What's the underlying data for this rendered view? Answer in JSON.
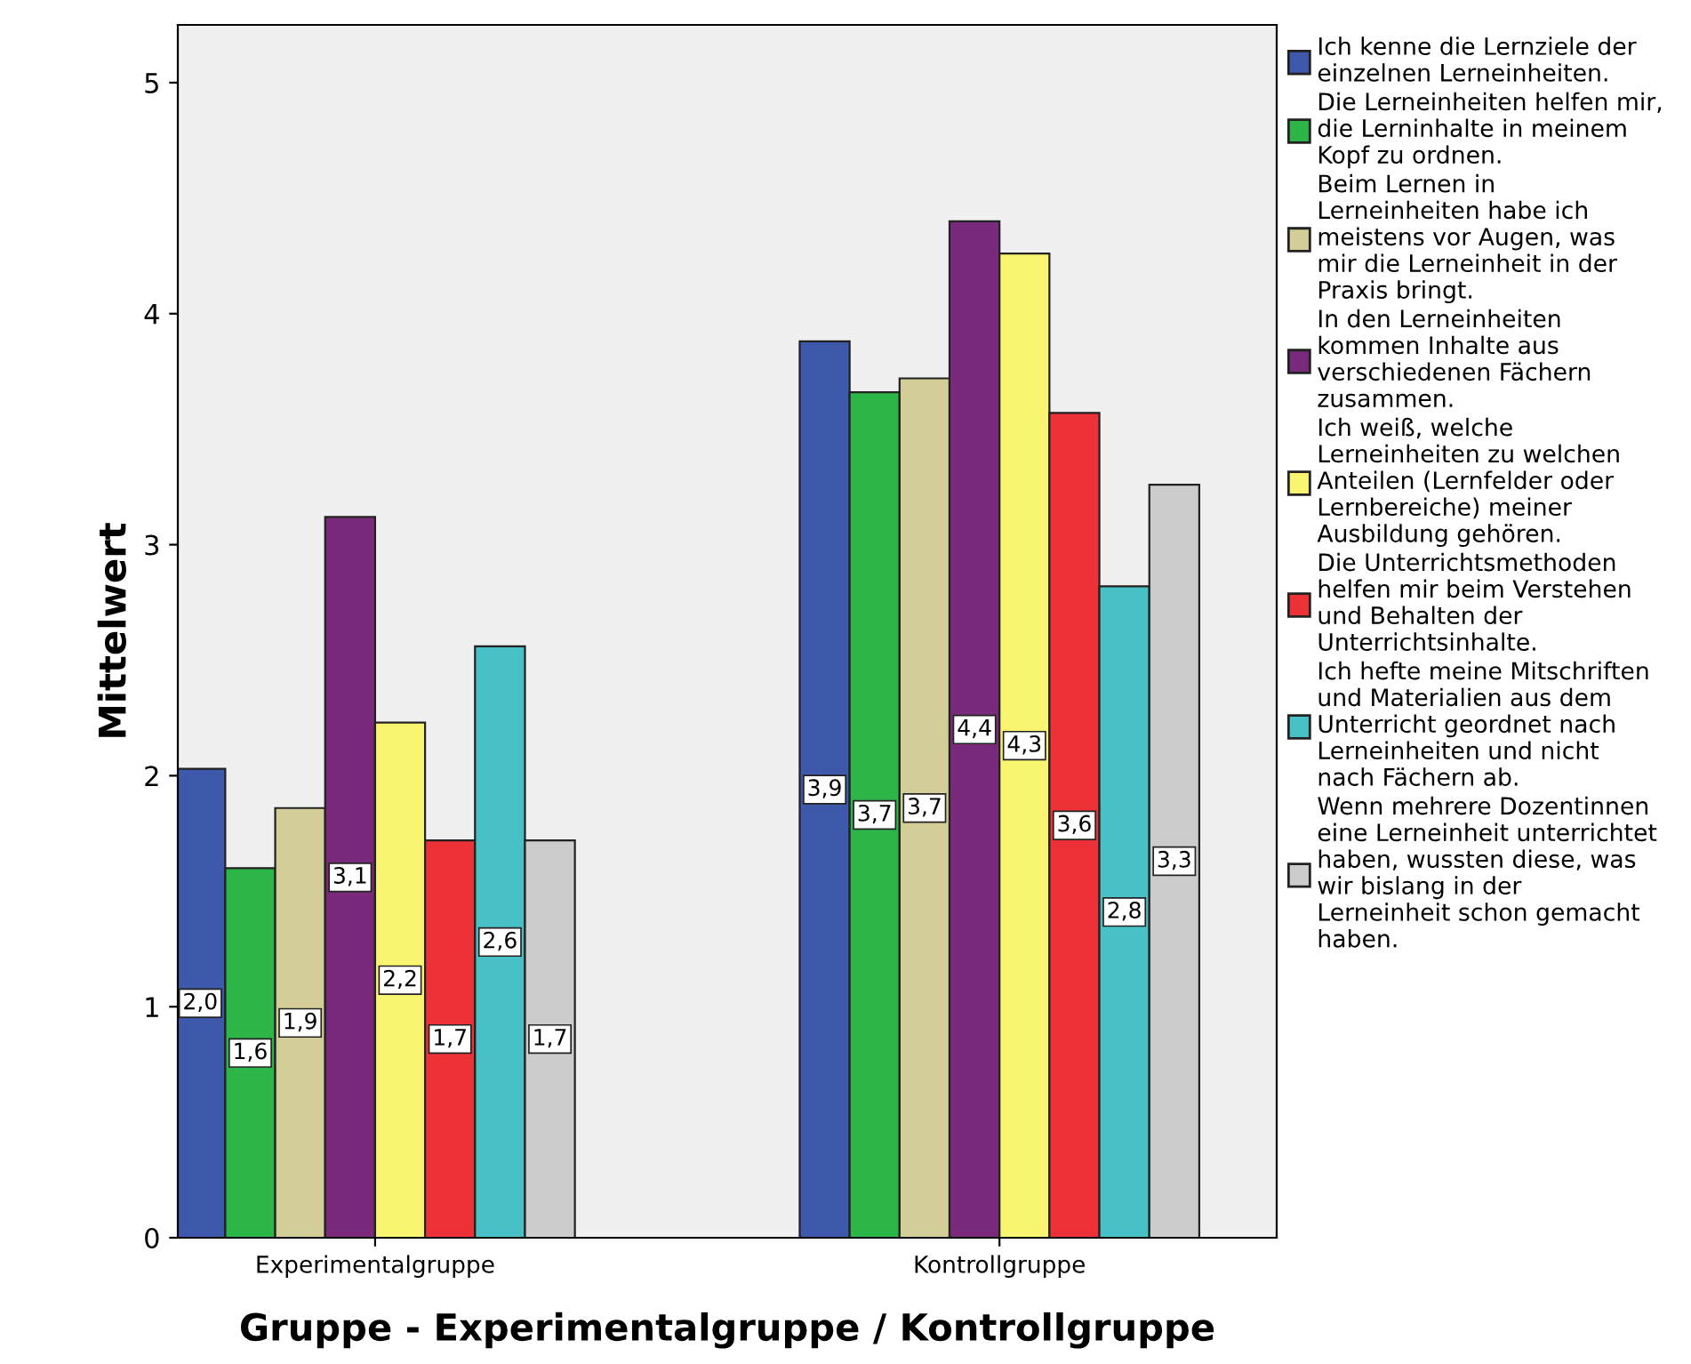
{
  "chart_data": {
    "type": "bar",
    "xlabel": "Gruppe - Experimentalgruppe / Kontrollgruppe",
    "ylabel": "Mittelwert",
    "categories": [
      "Experimentalgruppe",
      "Kontrollgruppe"
    ],
    "ylim": [
      0,
      5.25
    ],
    "yticks": [
      0,
      1,
      2,
      3,
      4,
      5
    ],
    "grid": false,
    "legend": "right",
    "series": [
      {
        "name": "Ich kenne die Lernziele der\neinzelnen Lerneinheiten.",
        "color": "#3e58ac",
        "values": [
          2.03,
          3.88
        ],
        "value_labels": [
          "2,0",
          "3,9"
        ]
      },
      {
        "name": "Die Lerneinheiten helfen mir,\ndie Lerninhalte in meinem\nKopf zu ordnen.",
        "color": "#2eb548",
        "values": [
          1.6,
          3.66
        ],
        "value_labels": [
          "1,6",
          "3,7"
        ]
      },
      {
        "name": "Beim Lernen in\nLerneinheiten habe ich\nmeistens vor Augen, was\nmir die Lerneinheit in der\nPraxis bringt.",
        "color": "#d3ce97",
        "values": [
          1.86,
          3.72
        ],
        "value_labels": [
          "1,9",
          "3,7"
        ]
      },
      {
        "name": "In den Lerneinheiten\nkommen Inhalte aus\nverschiedenen Fächern\nzusammen.",
        "color": "#7a2a7b",
        "values": [
          3.12,
          4.4
        ],
        "value_labels": [
          "3,1",
          "4,4"
        ]
      },
      {
        "name": "Ich weiß, welche\nLerneinheiten zu welchen\nAnteilen (Lernfelder oder\nLernbereiche) meiner\nAusbildung gehören.",
        "color": "#f9f570",
        "values": [
          2.23,
          4.26
        ],
        "value_labels": [
          "2,2",
          "4,3"
        ]
      },
      {
        "name": "Die Unterrichtsmethoden\nhelfen mir beim Verstehen\nund Behalten der\nUnterrichtsinhalte.",
        "color": "#ec3237",
        "values": [
          1.72,
          3.57
        ],
        "value_labels": [
          "1,7",
          "3,6"
        ]
      },
      {
        "name": "Ich hefte meine Mitschriften\nund Materialien aus dem\nUnterricht geordnet nach\nLerneinheiten und nicht\nnach Fächern ab.",
        "color": "#48c1c6",
        "values": [
          2.56,
          2.82
        ],
        "value_labels": [
          "2,6",
          "2,8"
        ]
      },
      {
        "name": "Wenn mehrere Dozentinnen\neine Lerneinheit unterrichtet\nhaben, wussten diese, was\nwir bislang in der\nLerneinheit schon gemacht\nhaben.",
        "color": "#cccccc",
        "values": [
          1.72,
          3.26
        ],
        "value_labels": [
          "1,7",
          "3,3"
        ]
      }
    ]
  }
}
